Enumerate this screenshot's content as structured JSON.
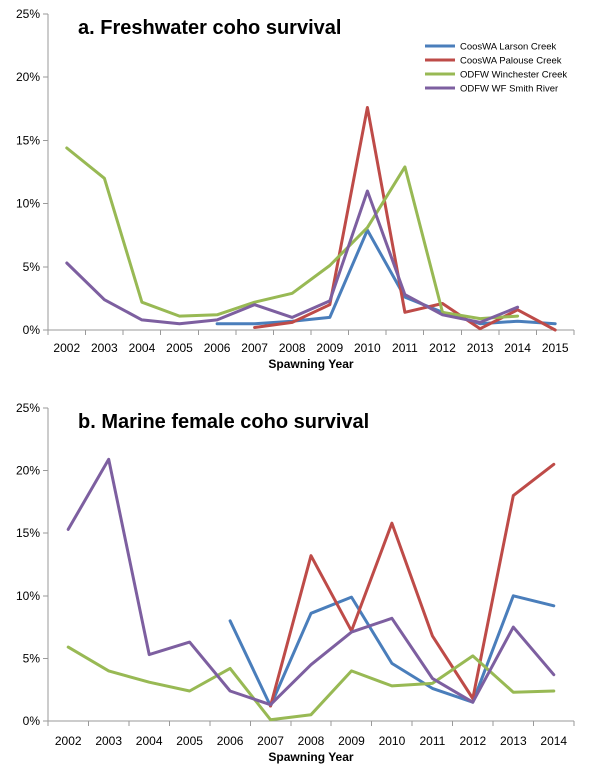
{
  "chart_data": [
    {
      "type": "line",
      "title": "a. Freshwater coho survival",
      "xlabel": "Spawning Year",
      "ylabel": "",
      "x": [
        2002,
        2003,
        2004,
        2005,
        2006,
        2007,
        2008,
        2009,
        2010,
        2011,
        2012,
        2013,
        2014,
        2015
      ],
      "x_tick_labels": [
        "2002",
        "2003",
        "2004",
        "2005",
        "2006",
        "2007",
        "2008",
        "2009",
        "2010",
        "2011",
        "2012",
        "2013",
        "2014",
        "2015"
      ],
      "ylim": [
        0,
        25
      ],
      "y_ticks": [
        0,
        5,
        10,
        15,
        20,
        25
      ],
      "y_tick_labels": [
        "0%",
        "5%",
        "10%",
        "15%",
        "20%",
        "25%"
      ],
      "grid": false,
      "legend_position": "top-right",
      "series": [
        {
          "name": "CoosWA Larson  Creek",
          "color": "#4a7ebb",
          "values": [
            null,
            null,
            null,
            null,
            0.5,
            0.5,
            0.7,
            1.0,
            7.9,
            2.6,
            1.4,
            0.5,
            0.7,
            0.5
          ]
        },
        {
          "name": "CoosWA Palouse Creek",
          "color": "#be4b48",
          "values": [
            null,
            null,
            null,
            null,
            null,
            0.2,
            0.6,
            2.0,
            17.6,
            1.4,
            2.1,
            0.1,
            1.6,
            0.0
          ]
        },
        {
          "name": "ODFW Winchester  Creek",
          "color": "#98b954",
          "values": [
            14.4,
            12.0,
            2.2,
            1.1,
            1.2,
            2.2,
            2.9,
            5.1,
            8.1,
            12.9,
            1.4,
            0.9,
            1.1,
            null
          ]
        },
        {
          "name": "ODFW WF Smith River",
          "color": "#7d5fa0",
          "values": [
            5.3,
            2.4,
            0.8,
            0.5,
            0.8,
            2.0,
            1.0,
            2.3,
            11.0,
            2.8,
            1.2,
            0.6,
            1.8,
            null
          ]
        }
      ]
    },
    {
      "type": "line",
      "title": "b. Marine female coho survival",
      "xlabel": "Spawning Year",
      "ylabel": "",
      "x": [
        2002,
        2003,
        2004,
        2005,
        2006,
        2007,
        2008,
        2009,
        2010,
        2011,
        2012,
        2013,
        2014
      ],
      "x_tick_labels": [
        "2002",
        "2003",
        "2004",
        "2005",
        "2006",
        "2007",
        "2008",
        "2009",
        "2010",
        "2011",
        "2012",
        "2013",
        "2014"
      ],
      "ylim": [
        0,
        25
      ],
      "y_ticks": [
        0,
        5,
        10,
        15,
        20,
        25
      ],
      "y_tick_labels": [
        "0%",
        "5%",
        "10%",
        "15%",
        "20%",
        "25%"
      ],
      "grid": false,
      "series": [
        {
          "name": "CoosWA Larson  Creek",
          "color": "#4a7ebb",
          "values": [
            null,
            null,
            null,
            null,
            8.0,
            1.2,
            8.6,
            9.9,
            4.6,
            2.6,
            1.5,
            10.0,
            9.2
          ]
        },
        {
          "name": "CoosWA Palouse Creek",
          "color": "#be4b48",
          "values": [
            null,
            null,
            null,
            null,
            null,
            1.2,
            13.2,
            7.2,
            15.8,
            6.8,
            1.8,
            18.0,
            20.5
          ]
        },
        {
          "name": "ODFW Winchester  Creek",
          "color": "#98b954",
          "values": [
            5.9,
            4.0,
            3.1,
            2.4,
            4.2,
            0.1,
            0.5,
            4.0,
            2.8,
            3.0,
            5.2,
            2.3,
            2.4
          ]
        },
        {
          "name": "ODFW WF Smith River",
          "color": "#7d5fa0",
          "values": [
            15.3,
            20.9,
            5.3,
            6.3,
            2.4,
            1.3,
            4.5,
            7.1,
            8.2,
            3.4,
            1.5,
            7.5,
            3.7
          ]
        }
      ]
    }
  ]
}
